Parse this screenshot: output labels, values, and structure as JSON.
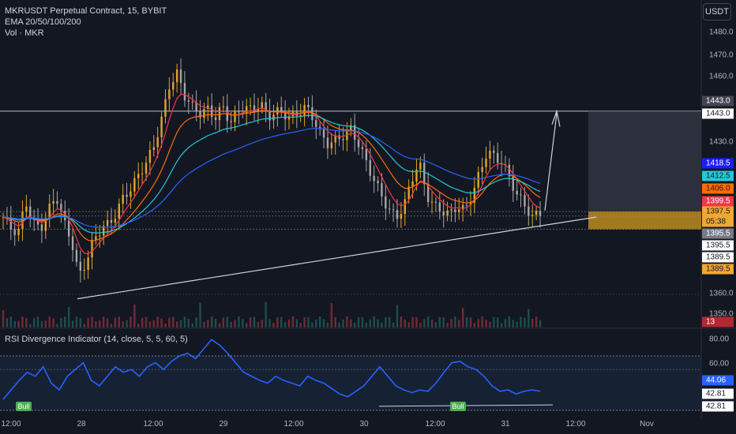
{
  "header": {
    "title": "MKRUSDT Perpetual Contract, 15, BYBIT",
    "ema_label": "EMA 20/50/100/200",
    "vol_label": "Vol · MKR",
    "currency": "USDT"
  },
  "rsi_title": "RSI Divergence Indicator (14, close, 5, 5, 60, 5)",
  "price_ticks": [
    "1480.0",
    "1470.0",
    "1460.0",
    "1430.0",
    "1360.0",
    "1350.0"
  ],
  "rsi_ticks": [
    "80.00",
    "60.00"
  ],
  "price_tags": [
    {
      "text": "1443.0",
      "bg": "#434651",
      "fg": "#ffffff"
    },
    {
      "text": "1443.0",
      "bg": "#ffffff",
      "fg": "#131722"
    },
    {
      "text": "1418.5",
      "bg": "#1d1dff",
      "fg": "#ffffff"
    },
    {
      "text": "1412.5",
      "bg": "#26c6da",
      "fg": "#131722"
    },
    {
      "text": "1406.0",
      "bg": "#ff6d00",
      "fg": "#131722"
    },
    {
      "text": "1399.5",
      "bg": "#f23645",
      "fg": "#ffffff"
    },
    {
      "text": "1397.5",
      "bg": "#f0a830",
      "fg": "#131722"
    },
    {
      "text": "05:38",
      "bg": "#f0a830",
      "fg": "#131722"
    },
    {
      "text": "1395.5",
      "bg": "#787b86",
      "fg": "#ffffff"
    },
    {
      "text": "1395.5",
      "bg": "#ffffff",
      "fg": "#131722"
    },
    {
      "text": "1389.5",
      "bg": "#ffffff",
      "fg": "#131722"
    },
    {
      "text": "1389.5",
      "bg": "#f0a830",
      "fg": "#131722"
    },
    {
      "text": "13",
      "bg": "#b22833",
      "fg": "#ffffff"
    },
    {
      "text": "44.06",
      "bg": "#2962ff",
      "fg": "#ffffff"
    },
    {
      "text": "42.81",
      "bg": "#ffffff",
      "fg": "#131722"
    },
    {
      "text": "42.81",
      "bg": "#ffffff",
      "fg": "#131722"
    }
  ],
  "time_ticks": [
    "12:00",
    "28",
    "12:00",
    "29",
    "12:00",
    "30",
    "12:00",
    "31",
    "12:00",
    "Nov"
  ],
  "bull_labels": [
    "Bull",
    "Bull"
  ],
  "colors": {
    "background": "#131722",
    "up": "#e0a526",
    "down": "#a6a6a6",
    "ema20": "#f23645",
    "ema50": "#ff6d00",
    "ema100": "#26c6da",
    "ema200": "#2962ff",
    "rsi": "#2962ff",
    "bull": "#4caf50"
  },
  "chart_data": {
    "type": "candlestick",
    "symbol": "MKRUSDT",
    "timeframe": "15",
    "price_range": [
      1345,
      1488
    ],
    "rsi_range": [
      30,
      88
    ],
    "levels": [
      1443.0,
      1397.5,
      1395.5,
      1389.5
    ],
    "ema": {
      "ema20": 1399.5,
      "ema50": 1406.0,
      "ema100": 1412.5,
      "ema200": 1418.5
    },
    "close_path": [
      1395,
      1390,
      1388,
      1402,
      1392,
      1390,
      1398,
      1405,
      1393,
      1385,
      1368,
      1375,
      1385,
      1390,
      1392,
      1397,
      1405,
      1408,
      1415,
      1420,
      1428,
      1440,
      1455,
      1460,
      1450,
      1445,
      1442,
      1444,
      1440,
      1445,
      1438,
      1442,
      1445,
      1443,
      1447,
      1440,
      1443,
      1442,
      1440,
      1442,
      1445,
      1440,
      1432,
      1428,
      1430,
      1432,
      1435,
      1428,
      1420,
      1412,
      1405,
      1398,
      1395,
      1400,
      1412,
      1420,
      1405,
      1400,
      1398,
      1396,
      1400,
      1398,
      1405,
      1415,
      1425,
      1422,
      1420,
      1412,
      1405,
      1400,
      1395,
      1397
    ],
    "rsi_path": [
      38,
      45,
      52,
      58,
      55,
      62,
      50,
      45,
      55,
      60,
      65,
      52,
      48,
      55,
      62,
      58,
      60,
      55,
      62,
      65,
      60,
      66,
      70,
      72,
      68,
      75,
      82,
      78,
      72,
      65,
      58,
      55,
      52,
      50,
      55,
      52,
      50,
      48,
      55,
      52,
      50,
      46,
      42,
      40,
      44,
      48,
      55,
      62,
      55,
      48,
      45,
      43,
      45,
      44,
      50,
      58,
      65,
      66,
      62,
      60,
      55,
      48,
      44,
      45,
      42,
      44,
      45,
      44
    ]
  }
}
